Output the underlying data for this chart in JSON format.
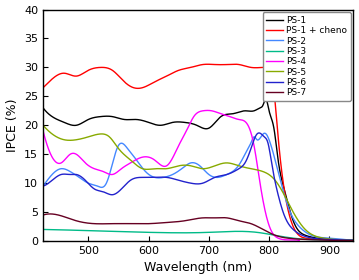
{
  "title": "",
  "xlabel": "Wavelength (nm)",
  "ylabel": "IPCE (%)",
  "xlim": [
    425,
    940
  ],
  "ylim": [
    0,
    40
  ],
  "yticks": [
    0,
    5,
    10,
    15,
    20,
    25,
    30,
    35,
    40
  ],
  "xticks": [
    500,
    600,
    700,
    800,
    900
  ],
  "legend_labels": [
    "PS-1",
    "PS-1 + cheno",
    "PS-2",
    "PS-3",
    "PS-4",
    "PS-5",
    "PS-6",
    "PS-7"
  ],
  "colors": [
    "black",
    "red",
    "#4488ff",
    "#00bb88",
    "magenta",
    "#88aa00",
    "#2222cc",
    "#660022"
  ],
  "bg_color": "white"
}
